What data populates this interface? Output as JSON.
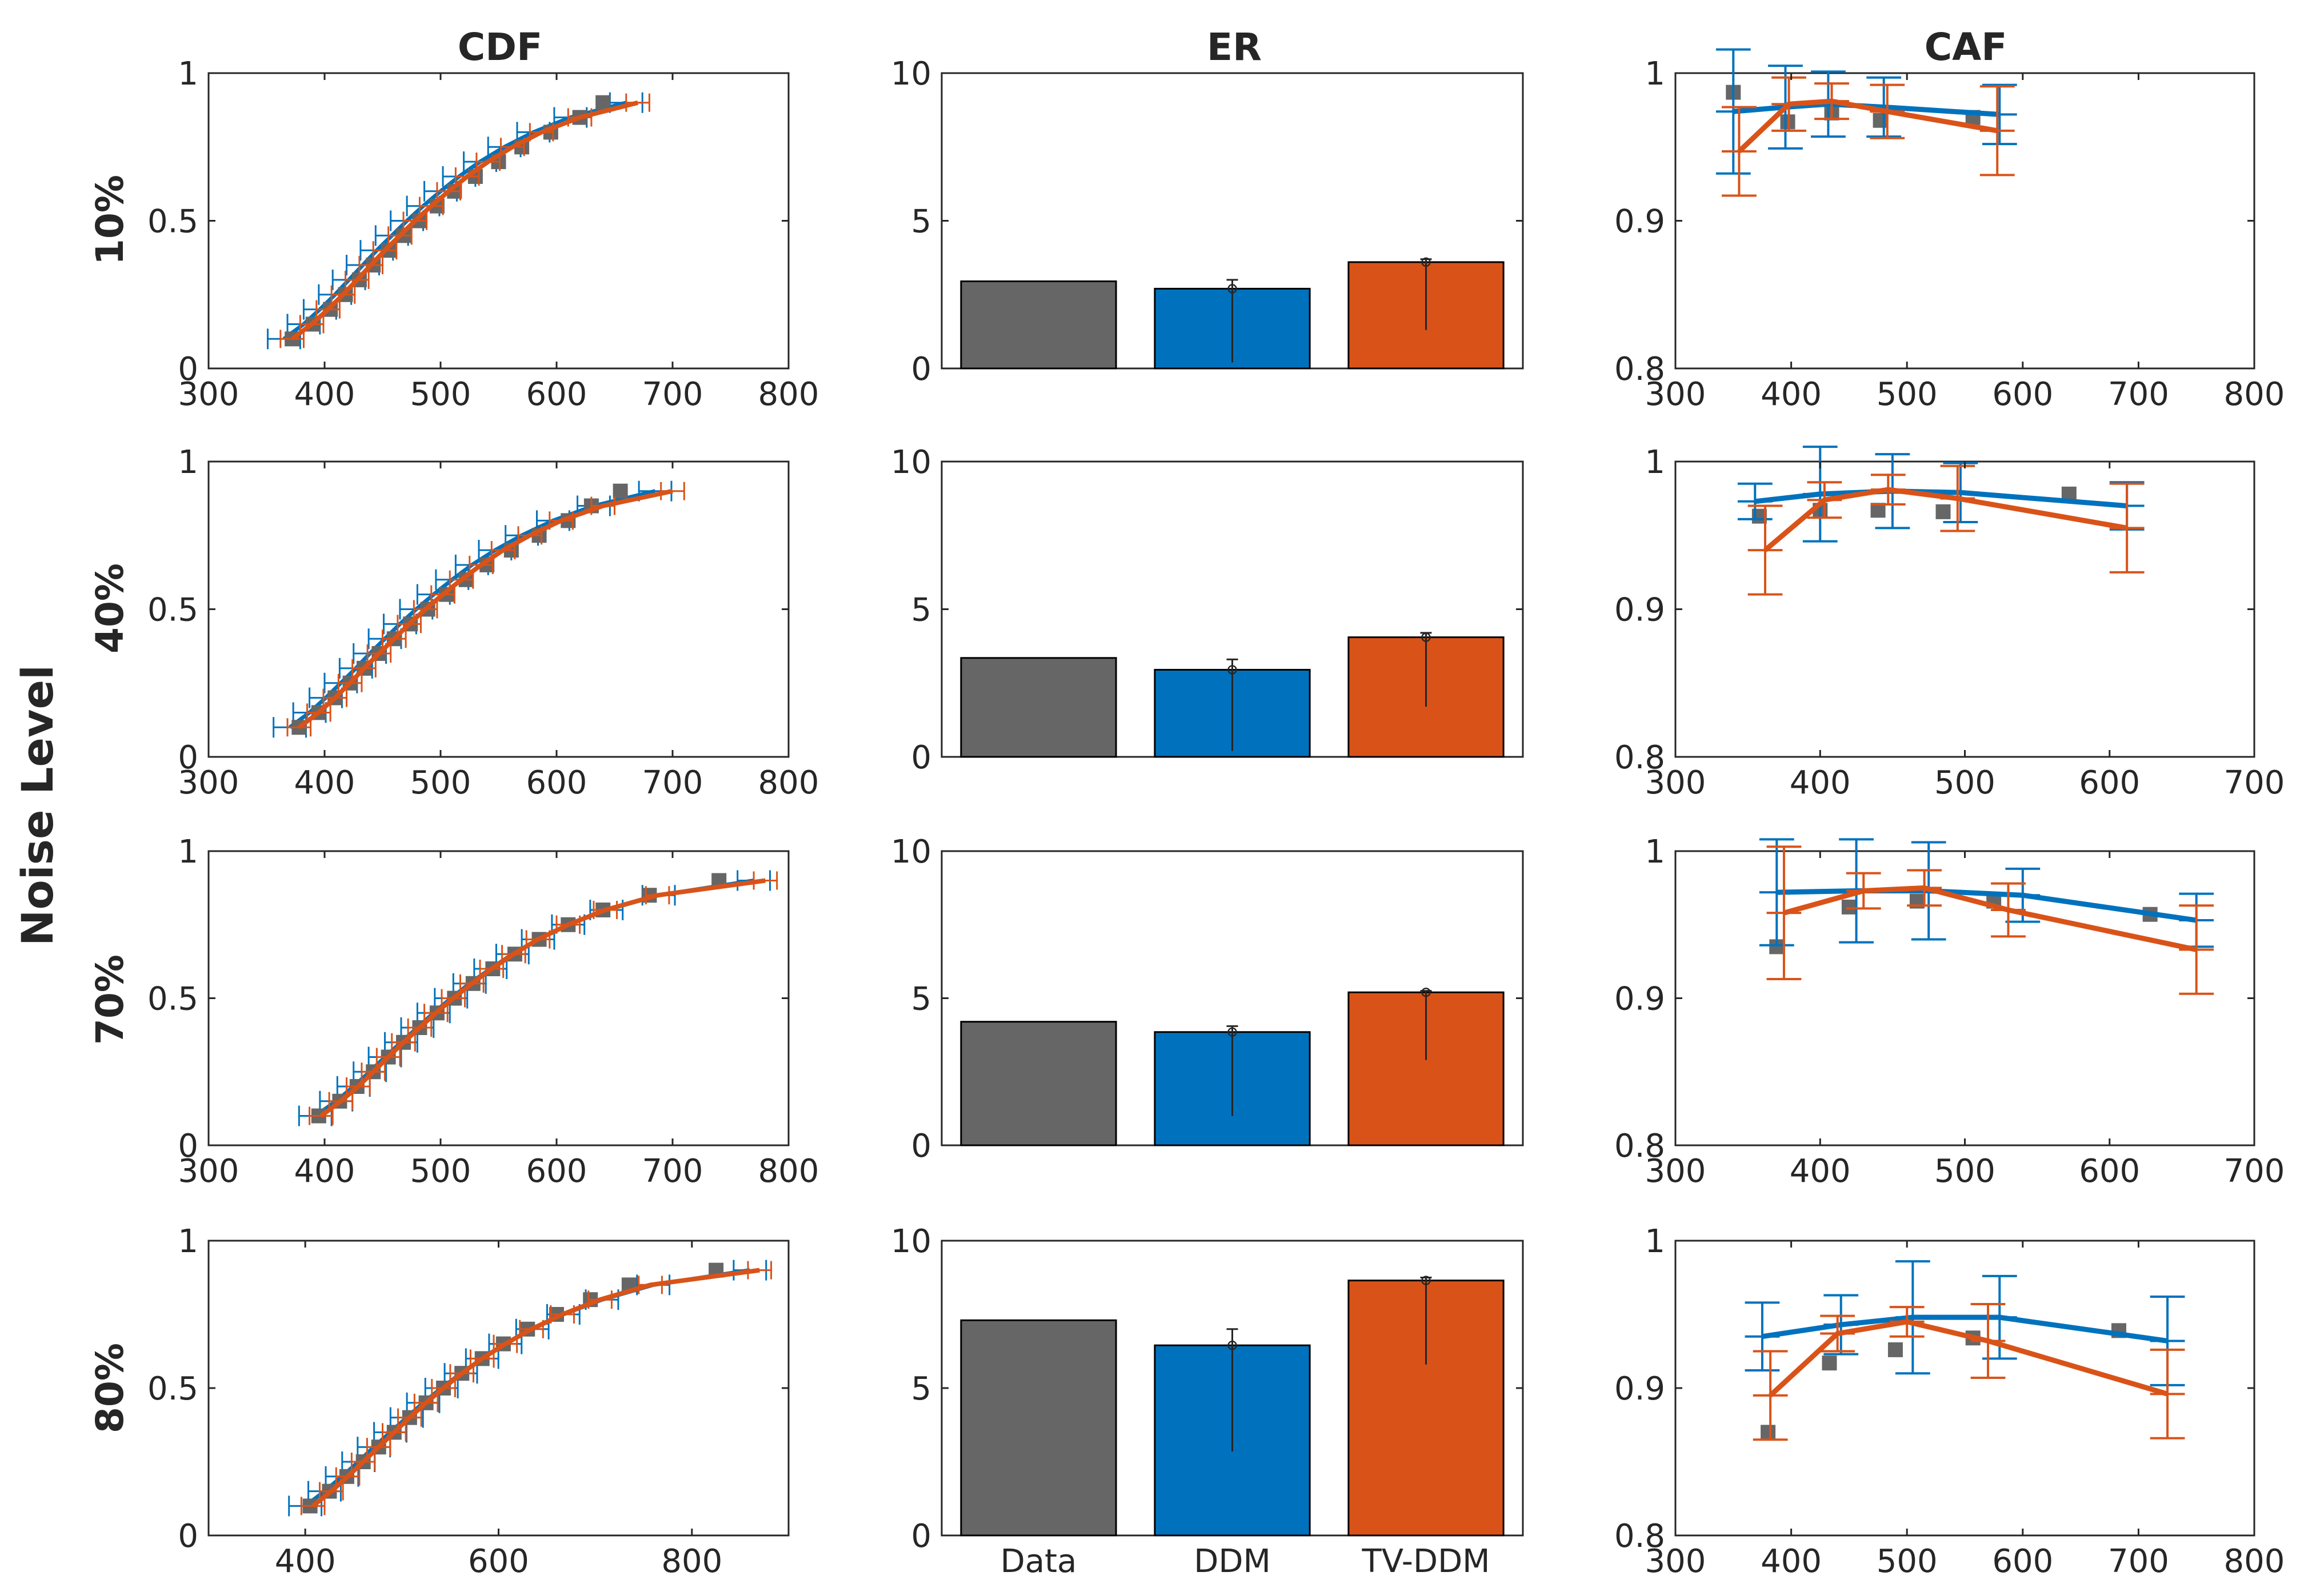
{
  "chart_data": {
    "type": "multi-panel",
    "ylabel": "Noise Level",
    "column_titles": [
      "CDF",
      "ER",
      "CAF"
    ],
    "row_labels": [
      "10%",
      "40%",
      "70%",
      "80%"
    ],
    "colors": {
      "data": "#666666",
      "ddm": "#0072BD",
      "tvddm": "#D95319"
    },
    "er_categories": [
      "Data",
      "DDM",
      "TV-DDM"
    ],
    "quantiles": [
      0.1,
      0.15,
      0.2,
      0.25,
      0.3,
      0.35,
      0.4,
      0.45,
      0.5,
      0.55,
      0.6,
      0.65,
      0.7,
      0.75,
      0.8,
      0.85,
      0.9
    ],
    "rows": [
      {
        "label": "10%",
        "cdf": {
          "type": "line",
          "xlim": [
            300,
            800
          ],
          "ylim": [
            0,
            1
          ],
          "xticks": [
            "300",
            "400",
            "500",
            "600",
            "700",
            "800"
          ],
          "yticks": [
            "0",
            "0.5",
            "1"
          ],
          "data_x": [
            372,
            390,
            405,
            418,
            430,
            442,
            455,
            468,
            482,
            497,
            512,
            530,
            550,
            570,
            595,
            620,
            640
          ],
          "ddm_x": [
            365,
            382,
            396,
            409,
            421,
            433,
            445,
            458,
            471,
            485,
            500,
            516,
            534,
            555,
            580,
            612,
            660
          ],
          "tvddm_x": [
            372,
            389,
            403,
            416,
            428,
            440,
            452,
            465,
            478,
            492,
            507,
            523,
            541,
            562,
            587,
            620,
            670
          ]
        },
        "er": {
          "type": "bar",
          "ylim": [
            0,
            10
          ],
          "yticks": [
            "0",
            "5",
            "10"
          ],
          "values": [
            2.95,
            2.7,
            3.6
          ],
          "error_low": [
            null,
            0.2,
            1.3
          ],
          "error_high": [
            null,
            3.0,
            3.7
          ]
        },
        "caf": {
          "type": "line",
          "xlim": [
            300,
            800
          ],
          "ylim": [
            0.8,
            1
          ],
          "xticks": [
            "300",
            "400",
            "500",
            "600",
            "700",
            "800"
          ],
          "yticks": [
            "0.8",
            "0.9",
            "1"
          ],
          "data_x": [
            350,
            397,
            435,
            477,
            557
          ],
          "data_y": [
            0.987,
            0.967,
            0.973,
            0.968,
            0.97
          ],
          "ddm_x": [
            350,
            395,
            432,
            480,
            580
          ],
          "ddm_y": [
            0.974,
            0.977,
            0.979,
            0.977,
            0.972
          ],
          "ddm_err": [
            0.042,
            0.028,
            0.022,
            0.02,
            0.02
          ],
          "tvddm_x": [
            355,
            398,
            435,
            483,
            578
          ],
          "tvddm_y": [
            0.947,
            0.979,
            0.981,
            0.974,
            0.961
          ],
          "tvddm_err": [
            0.03,
            0.018,
            0.012,
            0.018,
            0.03
          ]
        }
      },
      {
        "label": "40%",
        "cdf": {
          "type": "line",
          "xlim": [
            300,
            800
          ],
          "ylim": [
            0,
            1
          ],
          "xticks": [
            "300",
            "400",
            "500",
            "600",
            "700",
            "800"
          ],
          "yticks": [
            "0",
            "0.5",
            "1"
          ],
          "data_x": [
            378,
            395,
            409,
            422,
            434,
            447,
            460,
            474,
            489,
            505,
            522,
            540,
            561,
            585,
            610,
            630,
            655
          ],
          "ddm_x": [
            370,
            387,
            401,
            414,
            427,
            439,
            452,
            465,
            479,
            494,
            510,
            527,
            547,
            570,
            597,
            632,
            685
          ],
          "tvddm_x": [
            378,
            395,
            409,
            422,
            434,
            447,
            460,
            473,
            487,
            502,
            518,
            535,
            554,
            577,
            604,
            640,
            700
          ]
        },
        "er": {
          "type": "bar",
          "ylim": [
            0,
            10
          ],
          "yticks": [
            "0",
            "5",
            "10"
          ],
          "values": [
            3.35,
            2.95,
            4.05
          ],
          "error_low": [
            null,
            0.2,
            1.7
          ],
          "error_high": [
            null,
            3.3,
            4.2
          ]
        },
        "caf": {
          "type": "line",
          "xlim": [
            300,
            700
          ],
          "ylim": [
            0.8,
            1
          ],
          "xticks": [
            "300",
            "400",
            "500",
            "600",
            "700"
          ],
          "yticks": [
            "0.8",
            "0.9",
            "1"
          ],
          "data_x": [
            358,
            400,
            440,
            485,
            572
          ],
          "data_y": [
            0.963,
            0.967,
            0.967,
            0.966,
            0.978
          ],
          "ddm_x": [
            355,
            400,
            450,
            497,
            612
          ],
          "ddm_y": [
            0.973,
            0.978,
            0.98,
            0.979,
            0.97
          ],
          "ddm_err": [
            0.012,
            0.032,
            0.025,
            0.02,
            0.016
          ],
          "tvddm_x": [
            362,
            403,
            447,
            495,
            612
          ],
          "tvddm_y": [
            0.94,
            0.974,
            0.981,
            0.975,
            0.955
          ],
          "tvddm_err": [
            0.03,
            0.012,
            0.01,
            0.022,
            0.03
          ]
        }
      },
      {
        "label": "70%",
        "cdf": {
          "type": "line",
          "xlim": [
            300,
            800
          ],
          "ylim": [
            0,
            1
          ],
          "xticks": [
            "300",
            "400",
            "500",
            "600",
            "700",
            "800"
          ],
          "yticks": [
            "0",
            "0.5",
            "1"
          ],
          "data_x": [
            395,
            413,
            428,
            442,
            455,
            468,
            482,
            497,
            512,
            528,
            545,
            564,
            585,
            610,
            640,
            680,
            740
          ],
          "ddm_x": [
            392,
            410,
            425,
            439,
            452,
            466,
            480,
            494,
            509,
            525,
            543,
            562,
            584,
            610,
            643,
            688,
            770
          ],
          "tvddm_x": [
            397,
            414,
            429,
            442,
            455,
            468,
            482,
            496,
            511,
            527,
            544,
            563,
            584,
            610,
            642,
            687,
            780
          ]
        },
        "er": {
          "type": "bar",
          "ylim": [
            0,
            10
          ],
          "yticks": [
            "0",
            "5",
            "10"
          ],
          "values": [
            4.2,
            3.85,
            5.2
          ],
          "error_low": [
            null,
            1.0,
            2.9
          ],
          "error_high": [
            null,
            4.05,
            5.25
          ]
        },
        "caf": {
          "type": "line",
          "xlim": [
            300,
            700
          ],
          "ylim": [
            0.8,
            1
          ],
          "xticks": [
            "300",
            "400",
            "500",
            "600",
            "700"
          ],
          "yticks": [
            "0.8",
            "0.9",
            "1"
          ],
          "data_x": [
            370,
            420,
            467,
            520,
            628
          ],
          "data_y": [
            0.935,
            0.962,
            0.966,
            0.966,
            0.957
          ],
          "ddm_x": [
            370,
            425,
            475,
            540,
            660
          ],
          "ddm_y": [
            0.972,
            0.973,
            0.973,
            0.97,
            0.953
          ],
          "ddm_err": [
            0.036,
            0.035,
            0.033,
            0.018,
            0.018
          ],
          "tvddm_x": [
            375,
            430,
            472,
            530,
            660
          ],
          "tvddm_y": [
            0.958,
            0.973,
            0.975,
            0.96,
            0.933
          ],
          "tvddm_err": [
            0.045,
            0.012,
            0.012,
            0.018,
            0.03
          ]
        }
      },
      {
        "label": "80%",
        "cdf": {
          "type": "line",
          "xlim": [
            300,
            900
          ],
          "ylim": [
            0,
            1
          ],
          "xticks": [
            "400",
            "600",
            "800"
          ],
          "yticks": [
            "0",
            "0.5",
            "1"
          ],
          "data_x": [
            405,
            425,
            443,
            460,
            476,
            492,
            508,
            525,
            543,
            562,
            583,
            605,
            630,
            660,
            695,
            735,
            825
          ],
          "ddm_x": [
            400,
            420,
            438,
            455,
            471,
            488,
            505,
            522,
            541,
            561,
            583,
            607,
            635,
            667,
            707,
            760,
            860
          ],
          "tvddm_x": [
            408,
            427,
            444,
            460,
            476,
            492,
            508,
            525,
            543,
            562,
            583,
            607,
            634,
            666,
            705,
            757,
            870
          ]
        },
        "er": {
          "type": "bar",
          "ylim": [
            0,
            10
          ],
          "yticks": [
            "0",
            "5",
            "10"
          ],
          "values": [
            7.3,
            6.45,
            8.65
          ],
          "error_low": [
            null,
            2.85,
            5.8
          ],
          "error_high": [
            null,
            7.0,
            8.75
          ]
        },
        "caf": {
          "type": "line",
          "xlim": [
            300,
            800
          ],
          "ylim": [
            0.8,
            1
          ],
          "xticks": [
            "300",
            "400",
            "500",
            "600",
            "700",
            "800"
          ],
          "yticks": [
            "0.8",
            "0.9",
            "1"
          ],
          "data_x": [
            380,
            433,
            490,
            557,
            683
          ],
          "data_y": [
            0.87,
            0.917,
            0.926,
            0.934,
            0.939
          ],
          "ddm_x": [
            375,
            443,
            505,
            580,
            725
          ],
          "ddm_y": [
            0.935,
            0.943,
            0.948,
            0.948,
            0.932
          ],
          "ddm_err": [
            0.023,
            0.02,
            0.038,
            0.028,
            0.03
          ],
          "tvddm_x": [
            382,
            440,
            500,
            570,
            725
          ],
          "tvddm_y": [
            0.895,
            0.937,
            0.945,
            0.932,
            0.896
          ],
          "tvddm_err": [
            0.03,
            0.012,
            0.01,
            0.025,
            0.03
          ]
        }
      }
    ]
  }
}
